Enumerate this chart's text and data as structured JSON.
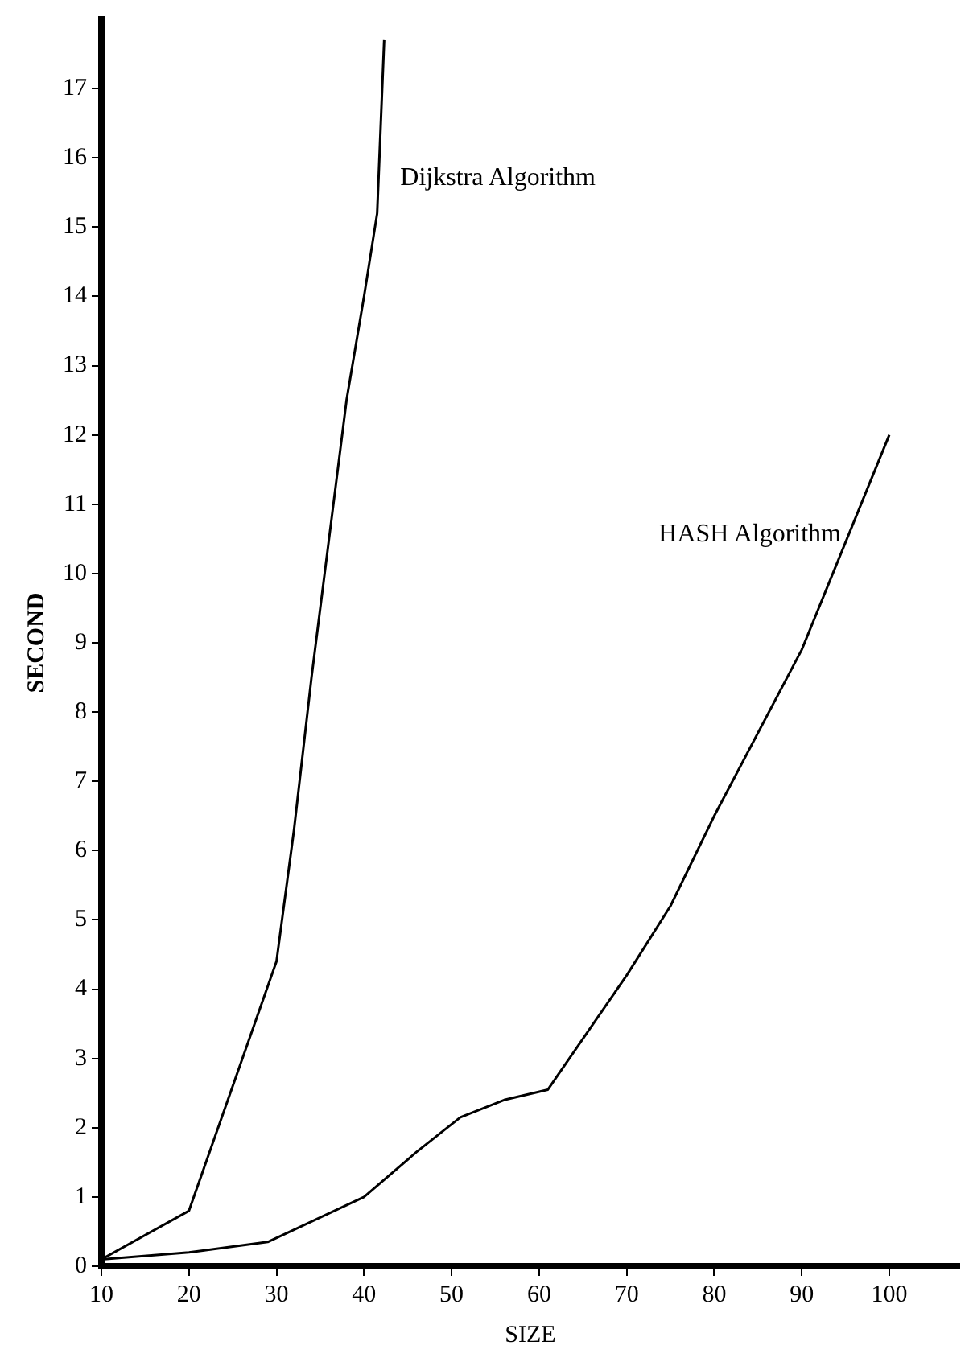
{
  "chart_data": {
    "type": "line",
    "xlabel": "SIZE",
    "ylabel": "SECOND",
    "xlim": [
      10,
      108
    ],
    "xticks": [
      10,
      20,
      30,
      40,
      50,
      60,
      70,
      80,
      90,
      100
    ],
    "ylim": [
      0,
      18
    ],
    "yticks": [
      0,
      1,
      2,
      3,
      4,
      5,
      6,
      7,
      8,
      9,
      10,
      11,
      12,
      13,
      14,
      15,
      16,
      17
    ],
    "grid": false,
    "legend": false,
    "marker": "none",
    "line_style": "solid",
    "series": [
      {
        "name": "Dijkstra Algorithm",
        "color": "#000000",
        "x": [
          10,
          20,
          30,
          32,
          34,
          36,
          38,
          40,
          41.5,
          42.3
        ],
        "values": [
          0.1,
          0.8,
          4.4,
          6.3,
          8.5,
          10.5,
          12.5,
          14.0,
          15.2,
          17.7
        ]
      },
      {
        "name": "HASH Algorithm",
        "color": "#000000",
        "x": [
          10,
          20,
          29,
          40,
          46,
          51,
          56,
          61,
          70,
          75,
          80,
          90,
          100
        ],
        "values": [
          0.1,
          0.2,
          0.35,
          1.0,
          1.65,
          2.15,
          2.4,
          2.55,
          4.2,
          5.2,
          6.5,
          8.9,
          12.0
        ]
      }
    ]
  }
}
